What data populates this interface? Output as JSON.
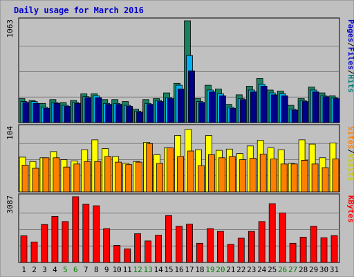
{
  "chart_data": {
    "type": "bar",
    "title": "Daily usage for March 2016",
    "categories": [
      "1",
      "2",
      "3",
      "4",
      "5",
      "6",
      "7",
      "8",
      "9",
      "10",
      "11",
      "12",
      "13",
      "14",
      "15",
      "16",
      "17",
      "18",
      "19",
      "20",
      "21",
      "22",
      "23",
      "24",
      "25",
      "26",
      "27",
      "28",
      "29",
      "30",
      "31"
    ],
    "weekend_days": [
      "5",
      "6",
      "12",
      "13",
      "19",
      "20",
      "26",
      "27"
    ],
    "panels": [
      {
        "id": "hits-files-pages",
        "ymax_label": "1063",
        "ylim": [
          0,
          1063
        ],
        "legend": [
          {
            "name": "Pages",
            "color": "#0000cc"
          },
          {
            "sep": "/"
          },
          {
            "name": "Files",
            "color": "#0000cc"
          },
          {
            "sep": "/"
          },
          {
            "name": "Hits",
            "color": "#008080"
          }
        ],
        "series": [
          {
            "name": "Hits",
            "color": "#1a8060",
            "values": [
              250,
              230,
              200,
              240,
              210,
              230,
              300,
              300,
              240,
              240,
              220,
              140,
              240,
              250,
              310,
              410,
              1063,
              250,
              390,
              350,
              190,
              290,
              380,
              460,
              340,
              330,
              180,
              250,
              370,
              310,
              280
            ]
          },
          {
            "name": "Files",
            "color": "#00b0f0",
            "values": [
              220,
              220,
              160,
              210,
              180,
              210,
              270,
              280,
              200,
              200,
              180,
              120,
              200,
              230,
              260,
              390,
              700,
              220,
              340,
              300,
              160,
              250,
              340,
              400,
              310,
              300,
              140,
              230,
              340,
              280,
              260
            ]
          },
          {
            "name": "Pages",
            "color": "#000088",
            "values": [
              210,
              200,
              150,
              200,
              170,
              200,
              260,
              260,
              190,
              190,
              170,
              110,
              190,
              220,
              250,
              350,
              540,
              210,
              320,
              280,
              150,
              240,
              320,
              380,
              290,
              280,
              130,
              220,
              320,
              270,
              250
            ]
          }
        ]
      },
      {
        "id": "visits-sites",
        "ymax_label": "104",
        "ylim": [
          0,
          104
        ],
        "legend": [
          {
            "name": "Sites",
            "color": "#ff8000"
          },
          {
            "sep": "/"
          },
          {
            "name": "Visits",
            "color": "#cccc00"
          }
        ],
        "series": [
          {
            "name": "Visits",
            "color": "#ffff00",
            "values": [
              56,
              49,
              55,
              65,
              52,
              50,
              68,
              84,
              70,
              57,
              46,
              49,
              80,
              60,
              71,
              91,
              101,
              68,
              91,
              67,
              69,
              62,
              74,
              83,
              71,
              68,
              46,
              84,
              77,
              55,
              79
            ]
          },
          {
            "name": "Sites",
            "color": "#ff8000",
            "values": [
              43,
              38,
              55,
              55,
              40,
              45,
              49,
              49,
              57,
              48,
              44,
              48,
              78,
              46,
              71,
              57,
              66,
              42,
              60,
              55,
              57,
              52,
              54,
              61,
              53,
              45,
              45,
              51,
              45,
              39,
              53
            ]
          }
        ]
      },
      {
        "id": "kbytes",
        "ymax_label": "3087",
        "ylim": [
          0,
          3087
        ],
        "legend": [
          {
            "name": "KBytes",
            "color": "#ff0000"
          }
        ],
        "series": [
          {
            "name": "KBytes",
            "color": "#ff0000",
            "values": [
              1250,
              960,
              1780,
              2160,
              1920,
              3087,
              2730,
              2660,
              1590,
              800,
              640,
              1350,
              1010,
              1280,
              2200,
              1700,
              1800,
              900,
              1590,
              1460,
              850,
              1140,
              1460,
              1920,
              2760,
              2320,
              900,
              1190,
              1700,
              1160,
              1260
            ]
          }
        ]
      }
    ]
  },
  "colors": {
    "background": "#c0c0c0",
    "plot_background": "#c0c0c0",
    "title": "#0000cc",
    "grid": "#808080",
    "day_label_weekday": "#000000",
    "day_label_weekend": "#008000"
  }
}
